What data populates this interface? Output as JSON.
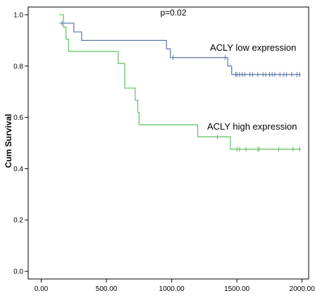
{
  "chart_data": {
    "type": "line",
    "title": "",
    "xlabel": "",
    "ylabel": "Cum Survival",
    "annotation": "p=0.02",
    "xlim": [
      -100,
      2050
    ],
    "ylim": [
      -0.03,
      1.03
    ],
    "x_ticks": [
      0,
      500,
      1000,
      1500,
      2000
    ],
    "x_tick_labels": [
      "0.00",
      "500.00",
      "1000.00",
      "1500.00",
      "2000.00"
    ],
    "y_ticks": [
      0.0,
      0.2,
      0.4,
      0.6,
      0.8,
      1.0
    ],
    "y_tick_labels": [
      "0.0",
      "0.2",
      "0.4",
      "0.6",
      "0.8",
      "1.0"
    ],
    "grid": false,
    "series": [
      {
        "name": "ACLY low expression",
        "color": "#5b75a8",
        "steps": [
          [
            140,
            0.967
          ],
          [
            250,
            0.933
          ],
          [
            310,
            0.9
          ],
          [
            960,
            0.867
          ],
          [
            990,
            0.833
          ],
          [
            1430,
            0.8
          ],
          [
            1460,
            0.767
          ],
          [
            1990,
            0.767
          ]
        ],
        "censored": [
          160,
          1010,
          1410,
          1490,
          1500,
          1520,
          1540,
          1560,
          1600,
          1620,
          1660,
          1700,
          1720,
          1750,
          1770,
          1790,
          1830,
          1860,
          1880,
          1920,
          1960,
          1980
        ]
      },
      {
        "name": "ACLY high expression",
        "color": "#5cbf5c",
        "steps": [
          [
            140,
            1.0
          ],
          [
            170,
            0.952
          ],
          [
            190,
            0.905
          ],
          [
            210,
            0.857
          ],
          [
            590,
            0.81
          ],
          [
            640,
            0.714
          ],
          [
            720,
            0.667
          ],
          [
            740,
            0.619
          ],
          [
            750,
            0.571
          ],
          [
            1200,
            0.524
          ],
          [
            1450,
            0.476
          ],
          [
            1990,
            0.476
          ]
        ],
        "censored": [
          1350,
          1500,
          1520,
          1570,
          1660,
          1670,
          1820,
          1930,
          1980
        ]
      }
    ]
  }
}
